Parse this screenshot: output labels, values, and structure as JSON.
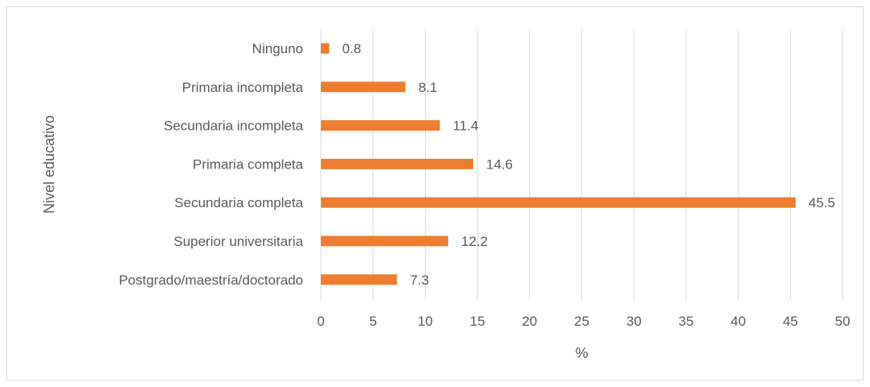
{
  "chart_data": {
    "type": "bar",
    "orientation": "horizontal",
    "categories": [
      "Ninguno",
      "Primaria incompleta",
      "Secundaria incompleta",
      "Primaria completa",
      "Secundaria completa",
      "Superior universitaria",
      "Postgrado/maestría/doctorado"
    ],
    "series": [
      {
        "values": [
          0.8,
          8.1,
          11.4,
          14.6,
          45.5,
          12.2,
          7.3
        ]
      }
    ],
    "data_labels": [
      "0.8",
      "8.1",
      "11.4",
      "14.6",
      "45.5",
      "12.2",
      "7.3"
    ],
    "xlabel": "%",
    "ylabel": "Nivel educativo",
    "xlim": [
      0,
      50
    ],
    "x_ticks": [
      "0",
      "5",
      "10",
      "15",
      "20",
      "25",
      "30",
      "35",
      "40",
      "45",
      "50"
    ],
    "grid": "vertical",
    "bar_color": "#ED7D31",
    "grid_color": "#d9d9d9"
  }
}
